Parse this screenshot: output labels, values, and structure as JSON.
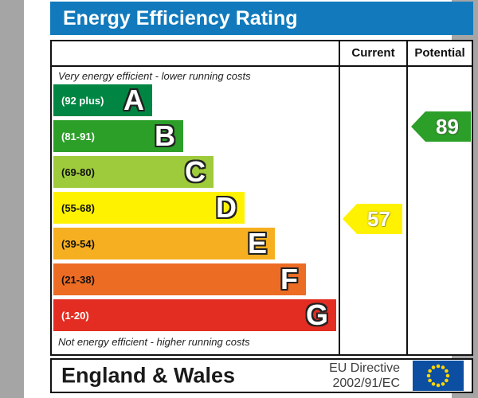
{
  "title": "Energy Efficiency Rating",
  "columns": {
    "current": "Current",
    "potential": "Potential"
  },
  "scale": {
    "top_note": "Very energy efficient - lower running costs",
    "bottom_note": "Not energy efficient - higher running costs"
  },
  "chart_data": {
    "type": "bar",
    "title": "Energy Efficiency Rating",
    "bands": [
      {
        "letter": "A",
        "label": "(92 plus)",
        "min": 92,
        "max": 100,
        "color": "#008642",
        "label_color": "#ffffff"
      },
      {
        "letter": "B",
        "label": "(81-91)",
        "min": 81,
        "max": 91,
        "color": "#2c9f29",
        "label_color": "#ffffff"
      },
      {
        "letter": "C",
        "label": "(69-80)",
        "min": 69,
        "max": 80,
        "color": "#9ecb3b",
        "label_color": "#111111"
      },
      {
        "letter": "D",
        "label": "(55-68)",
        "min": 55,
        "max": 68,
        "color": "#fff200",
        "label_color": "#111111"
      },
      {
        "letter": "E",
        "label": "(39-54)",
        "min": 39,
        "max": 54,
        "color": "#f6af21",
        "label_color": "#111111"
      },
      {
        "letter": "F",
        "label": "(21-38)",
        "min": 21,
        "max": 38,
        "color": "#ed6c24",
        "label_color": "#111111"
      },
      {
        "letter": "G",
        "label": "(1-20)",
        "min": 1,
        "max": 20,
        "color": "#e32d22",
        "label_color": "#ffffff"
      }
    ],
    "current": {
      "value": 57,
      "color": "#fff200"
    },
    "potential": {
      "value": 89,
      "color": "#2c9f29"
    }
  },
  "footer": {
    "region": "England & Wales",
    "directive_line1": "EU Directive",
    "directive_line2": "2002/91/EC",
    "eu_flag": {
      "background": "#0b4ea2",
      "star_color": "#ffd500"
    }
  },
  "theme": {
    "header_bg": "#127abc",
    "page_bg": "#a5a5a5",
    "border": "#111111"
  }
}
